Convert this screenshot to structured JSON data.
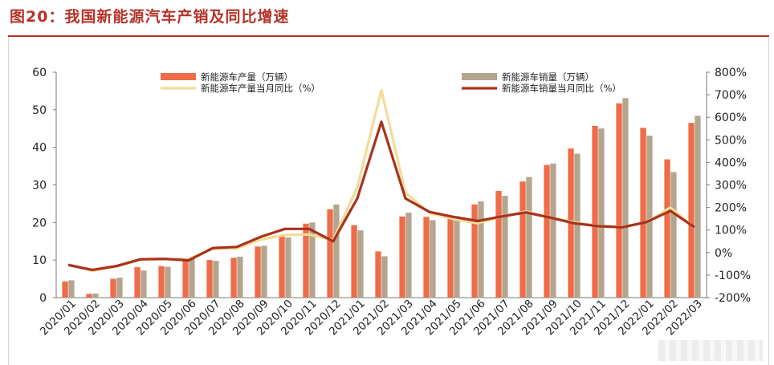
{
  "title": "图20：我国新能源汽车产销及同比增速",
  "colors": {
    "production_bar": "#ee6c47",
    "sales_bar": "#b4a58e",
    "production_yoy": "#f3dc98",
    "sales_yoy": "#a8321d",
    "title": "#b5332a"
  },
  "chart_data": {
    "type": "bar",
    "categories": [
      "2020/01",
      "2020/02",
      "2020/03",
      "2020/04",
      "2020/05",
      "2020/06",
      "2020/07",
      "2020/08",
      "2020/09",
      "2020/10",
      "2020/11",
      "2020/12",
      "2021/01",
      "2021/02",
      "2021/03",
      "2021/04",
      "2021/05",
      "2021/06",
      "2021/07",
      "2021/08",
      "2021/09",
      "2021/10",
      "2021/11",
      "2021/12",
      "2022/01",
      "2022/02",
      "2022/03"
    ],
    "series": [
      {
        "name": "新能源车产量（万辆）",
        "type": "bar",
        "axis": "left",
        "values": [
          4.3,
          1.0,
          5.0,
          8.1,
          8.4,
          10.2,
          10.0,
          10.6,
          13.6,
          16.5,
          19.7,
          23.5,
          19.3,
          12.3,
          21.6,
          21.5,
          21.5,
          24.8,
          28.4,
          30.9,
          35.3,
          39.7,
          45.7,
          51.7,
          45.2,
          36.8,
          46.5
        ]
      },
      {
        "name": "新能源车销量（万辆）",
        "type": "bar",
        "axis": "left",
        "values": [
          4.6,
          1.1,
          5.3,
          7.2,
          8.2,
          10.4,
          9.8,
          10.9,
          13.8,
          16.0,
          20.0,
          24.8,
          17.9,
          11.0,
          22.6,
          20.6,
          21.7,
          25.6,
          27.1,
          32.1,
          35.7,
          38.3,
          45.0,
          53.1,
          43.1,
          33.4,
          48.4
        ]
      },
      {
        "name": "新能源车产量当月同比（%）",
        "type": "line",
        "axis": "right",
        "values": [
          -52,
          -82,
          -62,
          -32,
          -30,
          -28,
          16,
          18,
          58,
          78,
          80,
          55,
          290,
          720,
          265,
          175,
          148,
          130,
          160,
          182,
          155,
          134,
          118,
          114,
          134,
          200,
          110
        ]
      },
      {
        "name": "新能源车销量当月同比（%）",
        "type": "line",
        "axis": "right",
        "values": [
          -55,
          -77,
          -60,
          -30,
          -28,
          -35,
          20,
          25,
          70,
          105,
          105,
          50,
          240,
          580,
          240,
          180,
          158,
          140,
          160,
          178,
          155,
          130,
          117,
          112,
          135,
          185,
          112
        ]
      }
    ],
    "yleft": {
      "min": 0,
      "max": 60,
      "ticks": [
        "0",
        "10",
        "20",
        "30",
        "40",
        "50",
        "60"
      ]
    },
    "yright": {
      "min": -200,
      "max": 800,
      "ticks": [
        "-200%",
        "-100%",
        "0%",
        "100%",
        "200%",
        "300%",
        "400%",
        "500%",
        "600%",
        "700%",
        "800%"
      ]
    },
    "legend_position": "top-center",
    "grid": false
  }
}
